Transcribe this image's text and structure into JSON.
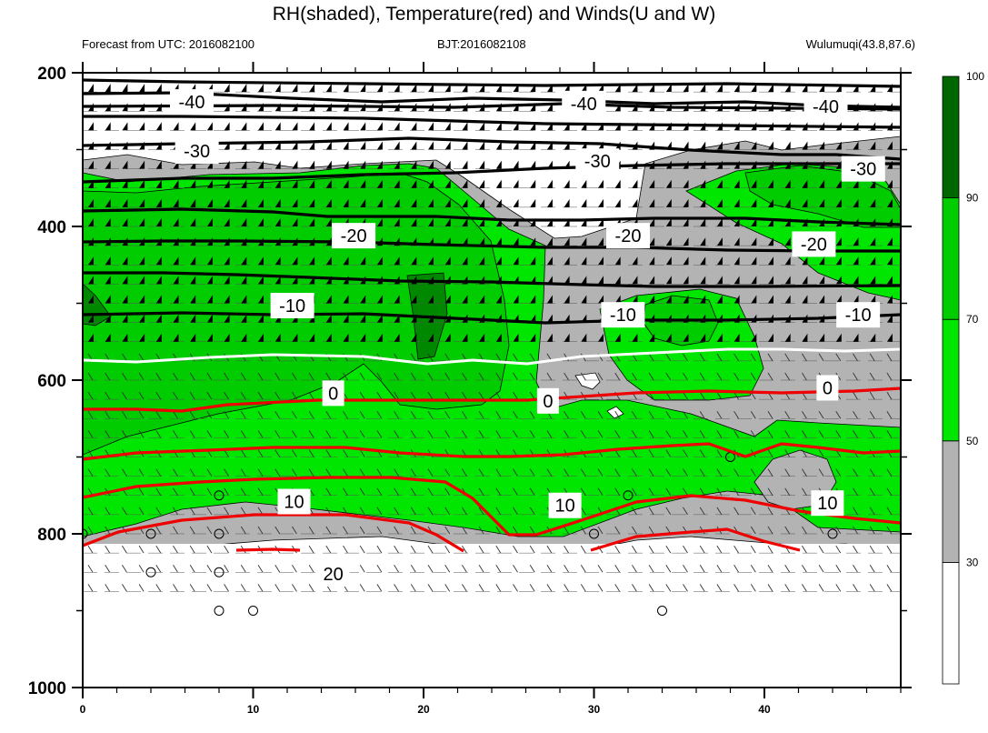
{
  "title": "RH(shaded), Temperature(red) and Winds(U and W)",
  "subtitles": {
    "left": "Forecast from UTC: 2016082100",
    "center": "BJT:2016082108",
    "right": "Wulumuqi(43.8,87.6)"
  },
  "chart_data": {
    "type": "heatmap",
    "description_fields": [
      "rh_shading",
      "temperature_contours",
      "wind_barbs"
    ],
    "x_ticks": [
      0,
      10,
      20,
      30,
      40
    ],
    "xlim": [
      0,
      48
    ],
    "y_ticks": [
      200,
      400,
      600,
      800,
      1000
    ],
    "ylim": [
      200,
      1000
    ],
    "y_inverted": true,
    "colorbar": {
      "levels": [
        30,
        50,
        70,
        90,
        100
      ],
      "colors": [
        "#ffffff",
        "#b3b3b3",
        "#00e600",
        "#00cc00",
        "#006600"
      ]
    },
    "temperature_contours": [
      {
        "label": "-40",
        "color": "#000000",
        "x": [
          0,
          48
        ],
        "y": [
          230,
          230
        ]
      },
      {
        "label": "-30",
        "color": "#000000",
        "x": [
          0,
          48
        ],
        "y": [
          300,
          315
        ]
      },
      {
        "label": "-20",
        "color": "#000000",
        "x": [
          0,
          48
        ],
        "y": [
          405,
          410
        ]
      },
      {
        "label": "-10",
        "color": "#000000",
        "x": [
          0,
          48
        ],
        "y": [
          500,
          505
        ]
      },
      {
        "label": "0",
        "color": "#ffffff",
        "x": [
          0,
          48
        ],
        "y": [
          620,
          607
        ]
      },
      {
        "label": "10",
        "color": "#ff0000",
        "x": [
          0,
          48
        ],
        "y": [
          760,
          758
        ]
      },
      {
        "label": "20",
        "color": "#ff0000",
        "x": [
          0,
          48
        ],
        "y": [
          855,
          865
        ]
      }
    ],
    "contour_labels": [
      {
        "text": "-40",
        "x": 6.4,
        "y": 238
      },
      {
        "text": "-40",
        "x": 29.4,
        "y": 240
      },
      {
        "text": "-40",
        "x": 43.6,
        "y": 244
      },
      {
        "text": "-30",
        "x": 6.7,
        "y": 302
      },
      {
        "text": "-30",
        "x": 30.2,
        "y": 315
      },
      {
        "text": "-30",
        "x": 45.8,
        "y": 325
      },
      {
        "text": "-20",
        "x": 15.9,
        "y": 412
      },
      {
        "text": "-20",
        "x": 32.0,
        "y": 412
      },
      {
        "text": "-20",
        "x": 42.9,
        "y": 423
      },
      {
        "text": "-10",
        "x": 12.3,
        "y": 503
      },
      {
        "text": "-10",
        "x": 31.7,
        "y": 515
      },
      {
        "text": "-10",
        "x": 45.5,
        "y": 515
      },
      {
        "text": "0",
        "x": 14.7,
        "y": 617
      },
      {
        "text": "0",
        "x": 27.3,
        "y": 627
      },
      {
        "text": "0",
        "x": 43.7,
        "y": 610
      },
      {
        "text": "10",
        "x": 12.4,
        "y": 758
      },
      {
        "text": "10",
        "x": 28.3,
        "y": 763
      },
      {
        "text": "10",
        "x": 43.7,
        "y": 760
      },
      {
        "text": "20",
        "x": 14.7,
        "y": 852
      }
    ]
  }
}
